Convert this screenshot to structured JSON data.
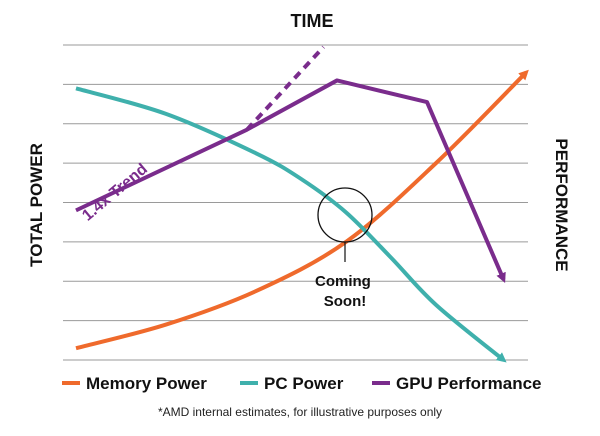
{
  "chart_data": {
    "type": "line",
    "title": "TIME",
    "ylabel_left": "TOTAL POWER",
    "ylabel_right": "PERFORMANCE",
    "x": [
      0,
      1,
      2,
      3,
      4,
      5,
      6,
      7,
      8,
      9,
      10
    ],
    "ylim": [
      0,
      8
    ],
    "grid": true,
    "gridlines": 8,
    "colors": {
      "memory": "#ef6a2c",
      "pc": "#3fb0ac",
      "gpu": "#7a2c8c"
    },
    "series": [
      {
        "name": "Memory Power",
        "key": "memory",
        "points": [
          [
            0,
            0.3
          ],
          [
            2,
            0.9
          ],
          [
            4,
            1.75
          ],
          [
            6,
            3.0
          ],
          [
            8,
            5.0
          ],
          [
            10,
            7.3
          ]
        ]
      },
      {
        "name": "PC Power",
        "key": "pc",
        "points": [
          [
            0,
            6.9
          ],
          [
            2,
            6.25
          ],
          [
            4,
            5.25
          ],
          [
            5,
            4.6
          ],
          [
            6,
            3.75
          ],
          [
            7,
            2.6
          ],
          [
            8,
            1.4
          ],
          [
            9.5,
            0
          ]
        ]
      },
      {
        "name": "GPU Performance",
        "key": "gpu",
        "points": [
          [
            0,
            3.8
          ],
          [
            3.8,
            5.85
          ],
          [
            5.8,
            7.1
          ],
          [
            7.8,
            6.55
          ],
          [
            9.5,
            2.05
          ]
        ]
      }
    ],
    "trend": {
      "label": "1.4x Trend",
      "points": [
        [
          3.8,
          5.85
        ],
        [
          5.5,
          7.95
        ]
      ]
    },
    "annotations": [
      {
        "text_lines": [
          "Coming",
          "Soon!"
        ]
      }
    ],
    "legend_position": "bottom",
    "footnote": "*AMD internal estimates, for illustrative purposes only"
  }
}
